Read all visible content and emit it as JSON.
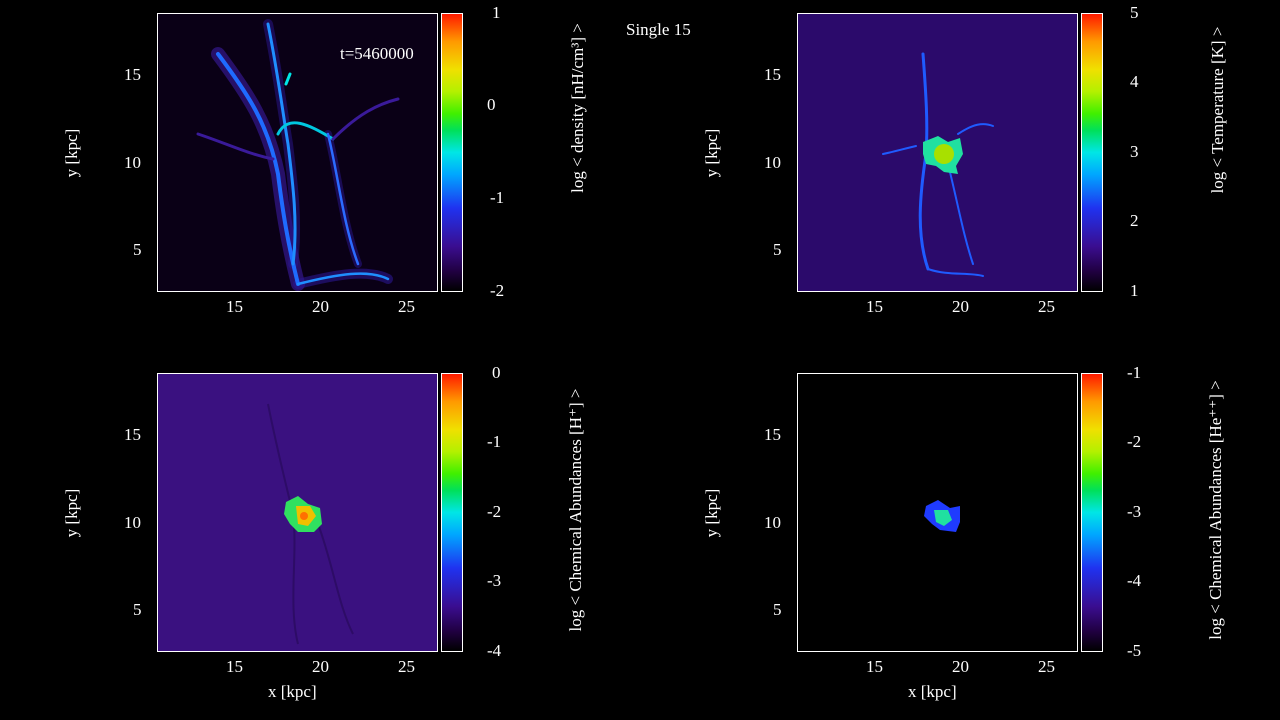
{
  "figure": {
    "title": "Single 15",
    "timestamp": "t=5460000",
    "panels": [
      {
        "name": "density",
        "y_label": "y [kpc]",
        "x_label": "",
        "colorbar_label": "log < density [nH/cm³] >",
        "colorbar_ticks": [
          "1",
          "0",
          "-1",
          "-2"
        ],
        "y_ticks": [
          "15",
          "10",
          "5"
        ],
        "x_ticks": [
          "15",
          "20",
          "25"
        ]
      },
      {
        "name": "temperature",
        "y_label": "y [kpc]",
        "x_label": "",
        "colorbar_label": "log < Temperature [K] >",
        "colorbar_ticks": [
          "5",
          "4",
          "3",
          "2",
          "1"
        ],
        "y_ticks": [
          "15",
          "10",
          "5"
        ],
        "x_ticks": [
          "15",
          "20",
          "25"
        ]
      },
      {
        "name": "hplus",
        "y_label": "y [kpc]",
        "x_label": "x [kpc]",
        "colorbar_label": "log < Chemical Abundances [H⁺] >",
        "colorbar_ticks": [
          "0",
          "-1",
          "-2",
          "-3",
          "-4"
        ],
        "y_ticks": [
          "15",
          "10",
          "5"
        ],
        "x_ticks": [
          "15",
          "20",
          "25"
        ]
      },
      {
        "name": "heplusplus",
        "y_label": "y [kpc]",
        "x_label": "x [kpc]",
        "colorbar_label": "log < Chemical Abundances [He⁺⁺] >",
        "colorbar_ticks": [
          "-1",
          "-2",
          "-3",
          "-4",
          "-5"
        ],
        "y_ticks": [
          "15",
          "10",
          "5"
        ],
        "x_ticks": [
          "15",
          "20",
          "25"
        ]
      }
    ],
    "colors": {
      "background": "#000000",
      "density_map": "#0a0016",
      "temperature_map": "#2b0a6b",
      "hplus_map": "#3a1180",
      "heplusplus_map": "#000000",
      "filament": "#1f8fff"
    }
  }
}
